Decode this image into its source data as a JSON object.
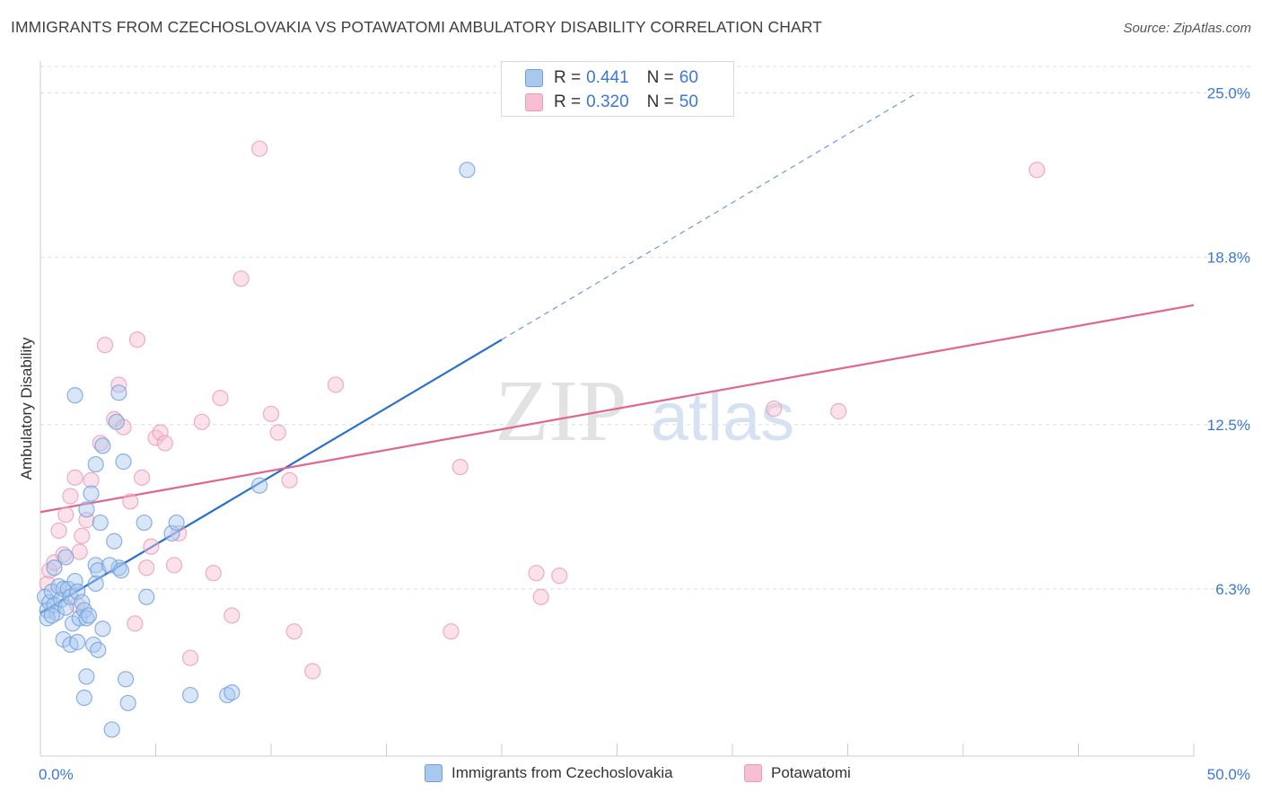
{
  "title": "IMMIGRANTS FROM CZECHOSLOVAKIA VS POTAWATOMI AMBULATORY DISABILITY CORRELATION CHART",
  "source": "Source: ZipAtlas.com",
  "watermark": {
    "zip": "ZIP",
    "atlas": "atlas"
  },
  "legend_top": [
    {
      "r_label": "R =",
      "r_value": "0.441",
      "n_label": "N =",
      "n_value": "60"
    },
    {
      "r_label": "R =",
      "r_value": "0.320",
      "n_label": "N =",
      "n_value": "50"
    }
  ],
  "colors": {
    "blue_fill": "#a9c8f0",
    "blue_stroke": "#6f9fdc",
    "blue_line": "#2a6fcf",
    "pink_fill": "#f7bfd1",
    "pink_stroke": "#e99ab5",
    "pink_line": "#e26591",
    "grid": "#dedede",
    "tick_label": "#3a78d8",
    "axis": "#cccccc"
  },
  "chart_data": {
    "type": "scatter",
    "title": "IMMIGRANTS FROM CZECHOSLOVAKIA VS POTAWATOMI AMBULATORY DISABILITY CORRELATION CHART",
    "xlabel": "",
    "ylabel": "Ambulatory Disability",
    "xlim": [
      0,
      50
    ],
    "ylim": [
      0,
      26
    ],
    "x_tick_labels": [
      {
        "value": 0,
        "label": "0.0%"
      },
      {
        "value": 50,
        "label": "50.0%"
      }
    ],
    "y_ticks": [
      {
        "value": 6.3,
        "label": "6.3%"
      },
      {
        "value": 12.5,
        "label": "12.5%"
      },
      {
        "value": 18.8,
        "label": "18.8%"
      },
      {
        "value": 25.0,
        "label": "25.0%"
      }
    ],
    "x_minor_ticks": [
      5,
      10,
      15,
      20,
      25,
      30,
      35,
      40,
      45,
      50
    ],
    "series": [
      {
        "name": "Immigrants from Czechoslovakia",
        "color": "#a9c8f0",
        "r": 0.441,
        "n": 60,
        "trend": {
          "x0": 0,
          "y0": 5.4,
          "x1": 20,
          "y1": 15.7,
          "dash_to_x": 38,
          "dash_to_y": 25.0
        },
        "points": [
          [
            0.2,
            6.0
          ],
          [
            0.3,
            5.5
          ],
          [
            0.4,
            5.8
          ],
          [
            0.5,
            6.2
          ],
          [
            0.6,
            5.7
          ],
          [
            0.7,
            5.4
          ],
          [
            0.8,
            6.4
          ],
          [
            0.9,
            5.9
          ],
          [
            1.0,
            6.3
          ],
          [
            1.1,
            5.6
          ],
          [
            0.3,
            5.2
          ],
          [
            0.5,
            5.3
          ],
          [
            0.6,
            7.1
          ],
          [
            1.2,
            6.3
          ],
          [
            1.3,
            6.0
          ],
          [
            1.4,
            5.0
          ],
          [
            1.5,
            6.6
          ],
          [
            1.6,
            6.2
          ],
          [
            1.7,
            5.2
          ],
          [
            1.8,
            5.8
          ],
          [
            1.9,
            5.5
          ],
          [
            2.0,
            5.2
          ],
          [
            2.1,
            5.3
          ],
          [
            1.0,
            4.4
          ],
          [
            1.3,
            4.2
          ],
          [
            1.6,
            4.3
          ],
          [
            2.3,
            4.2
          ],
          [
            2.4,
            7.2
          ],
          [
            2.5,
            7.0
          ],
          [
            2.6,
            8.8
          ],
          [
            2.2,
            9.9
          ],
          [
            2.4,
            11.0
          ],
          [
            2.7,
            11.7
          ],
          [
            3.2,
            8.1
          ],
          [
            3.4,
            7.1
          ],
          [
            3.6,
            11.1
          ],
          [
            3.3,
            12.6
          ],
          [
            3.0,
            7.2
          ],
          [
            3.5,
            7.0
          ],
          [
            4.5,
            8.8
          ],
          [
            4.6,
            6.0
          ],
          [
            5.7,
            8.4
          ],
          [
            5.9,
            8.8
          ],
          [
            1.5,
            13.6
          ],
          [
            3.4,
            13.7
          ],
          [
            2.0,
            9.3
          ],
          [
            2.7,
            4.8
          ],
          [
            2.5,
            4.0
          ],
          [
            2.0,
            3.0
          ],
          [
            1.9,
            2.2
          ],
          [
            3.7,
            2.9
          ],
          [
            3.8,
            2.0
          ],
          [
            3.1,
            1.0
          ],
          [
            6.5,
            2.3
          ],
          [
            8.1,
            2.3
          ],
          [
            8.3,
            2.4
          ],
          [
            9.5,
            10.2
          ],
          [
            18.5,
            22.1
          ],
          [
            1.1,
            7.5
          ],
          [
            2.4,
            6.5
          ]
        ]
      },
      {
        "name": "Potawatomi",
        "color": "#f7bfd1",
        "r": 0.32,
        "n": 50,
        "trend": {
          "x0": 0,
          "y0": 9.2,
          "x1": 50,
          "y1": 17.0
        },
        "points": [
          [
            0.3,
            6.5
          ],
          [
            0.4,
            7.0
          ],
          [
            0.6,
            7.3
          ],
          [
            0.8,
            8.5
          ],
          [
            1.0,
            7.6
          ],
          [
            1.1,
            9.1
          ],
          [
            1.3,
            9.8
          ],
          [
            1.5,
            10.5
          ],
          [
            1.7,
            7.7
          ],
          [
            1.8,
            8.3
          ],
          [
            2.0,
            8.9
          ],
          [
            2.2,
            10.4
          ],
          [
            2.6,
            11.8
          ],
          [
            2.8,
            15.5
          ],
          [
            3.2,
            12.7
          ],
          [
            3.4,
            14.0
          ],
          [
            3.6,
            12.4
          ],
          [
            3.9,
            9.6
          ],
          [
            4.1,
            5.0
          ],
          [
            4.2,
            15.7
          ],
          [
            4.4,
            10.5
          ],
          [
            4.6,
            7.1
          ],
          [
            4.8,
            7.9
          ],
          [
            5.0,
            12.0
          ],
          [
            5.2,
            12.2
          ],
          [
            5.4,
            11.8
          ],
          [
            5.8,
            7.2
          ],
          [
            6.0,
            8.4
          ],
          [
            6.5,
            3.7
          ],
          [
            7.0,
            12.6
          ],
          [
            7.5,
            6.9
          ],
          [
            7.8,
            13.5
          ],
          [
            8.3,
            5.3
          ],
          [
            8.7,
            18.0
          ],
          [
            9.5,
            22.9
          ],
          [
            10.0,
            12.9
          ],
          [
            10.3,
            12.2
          ],
          [
            10.8,
            10.4
          ],
          [
            11.0,
            4.7
          ],
          [
            11.8,
            3.2
          ],
          [
            12.8,
            14.0
          ],
          [
            17.8,
            4.7
          ],
          [
            18.2,
            10.9
          ],
          [
            21.5,
            6.9
          ],
          [
            21.7,
            6.0
          ],
          [
            22.5,
            6.8
          ],
          [
            31.8,
            13.1
          ],
          [
            34.6,
            13.0
          ],
          [
            43.2,
            22.1
          ],
          [
            1.6,
            5.7
          ]
        ]
      }
    ],
    "legend": [
      "Immigrants from Czechoslovakia",
      "Potawatomi"
    ],
    "legend_placement": "bottom"
  }
}
